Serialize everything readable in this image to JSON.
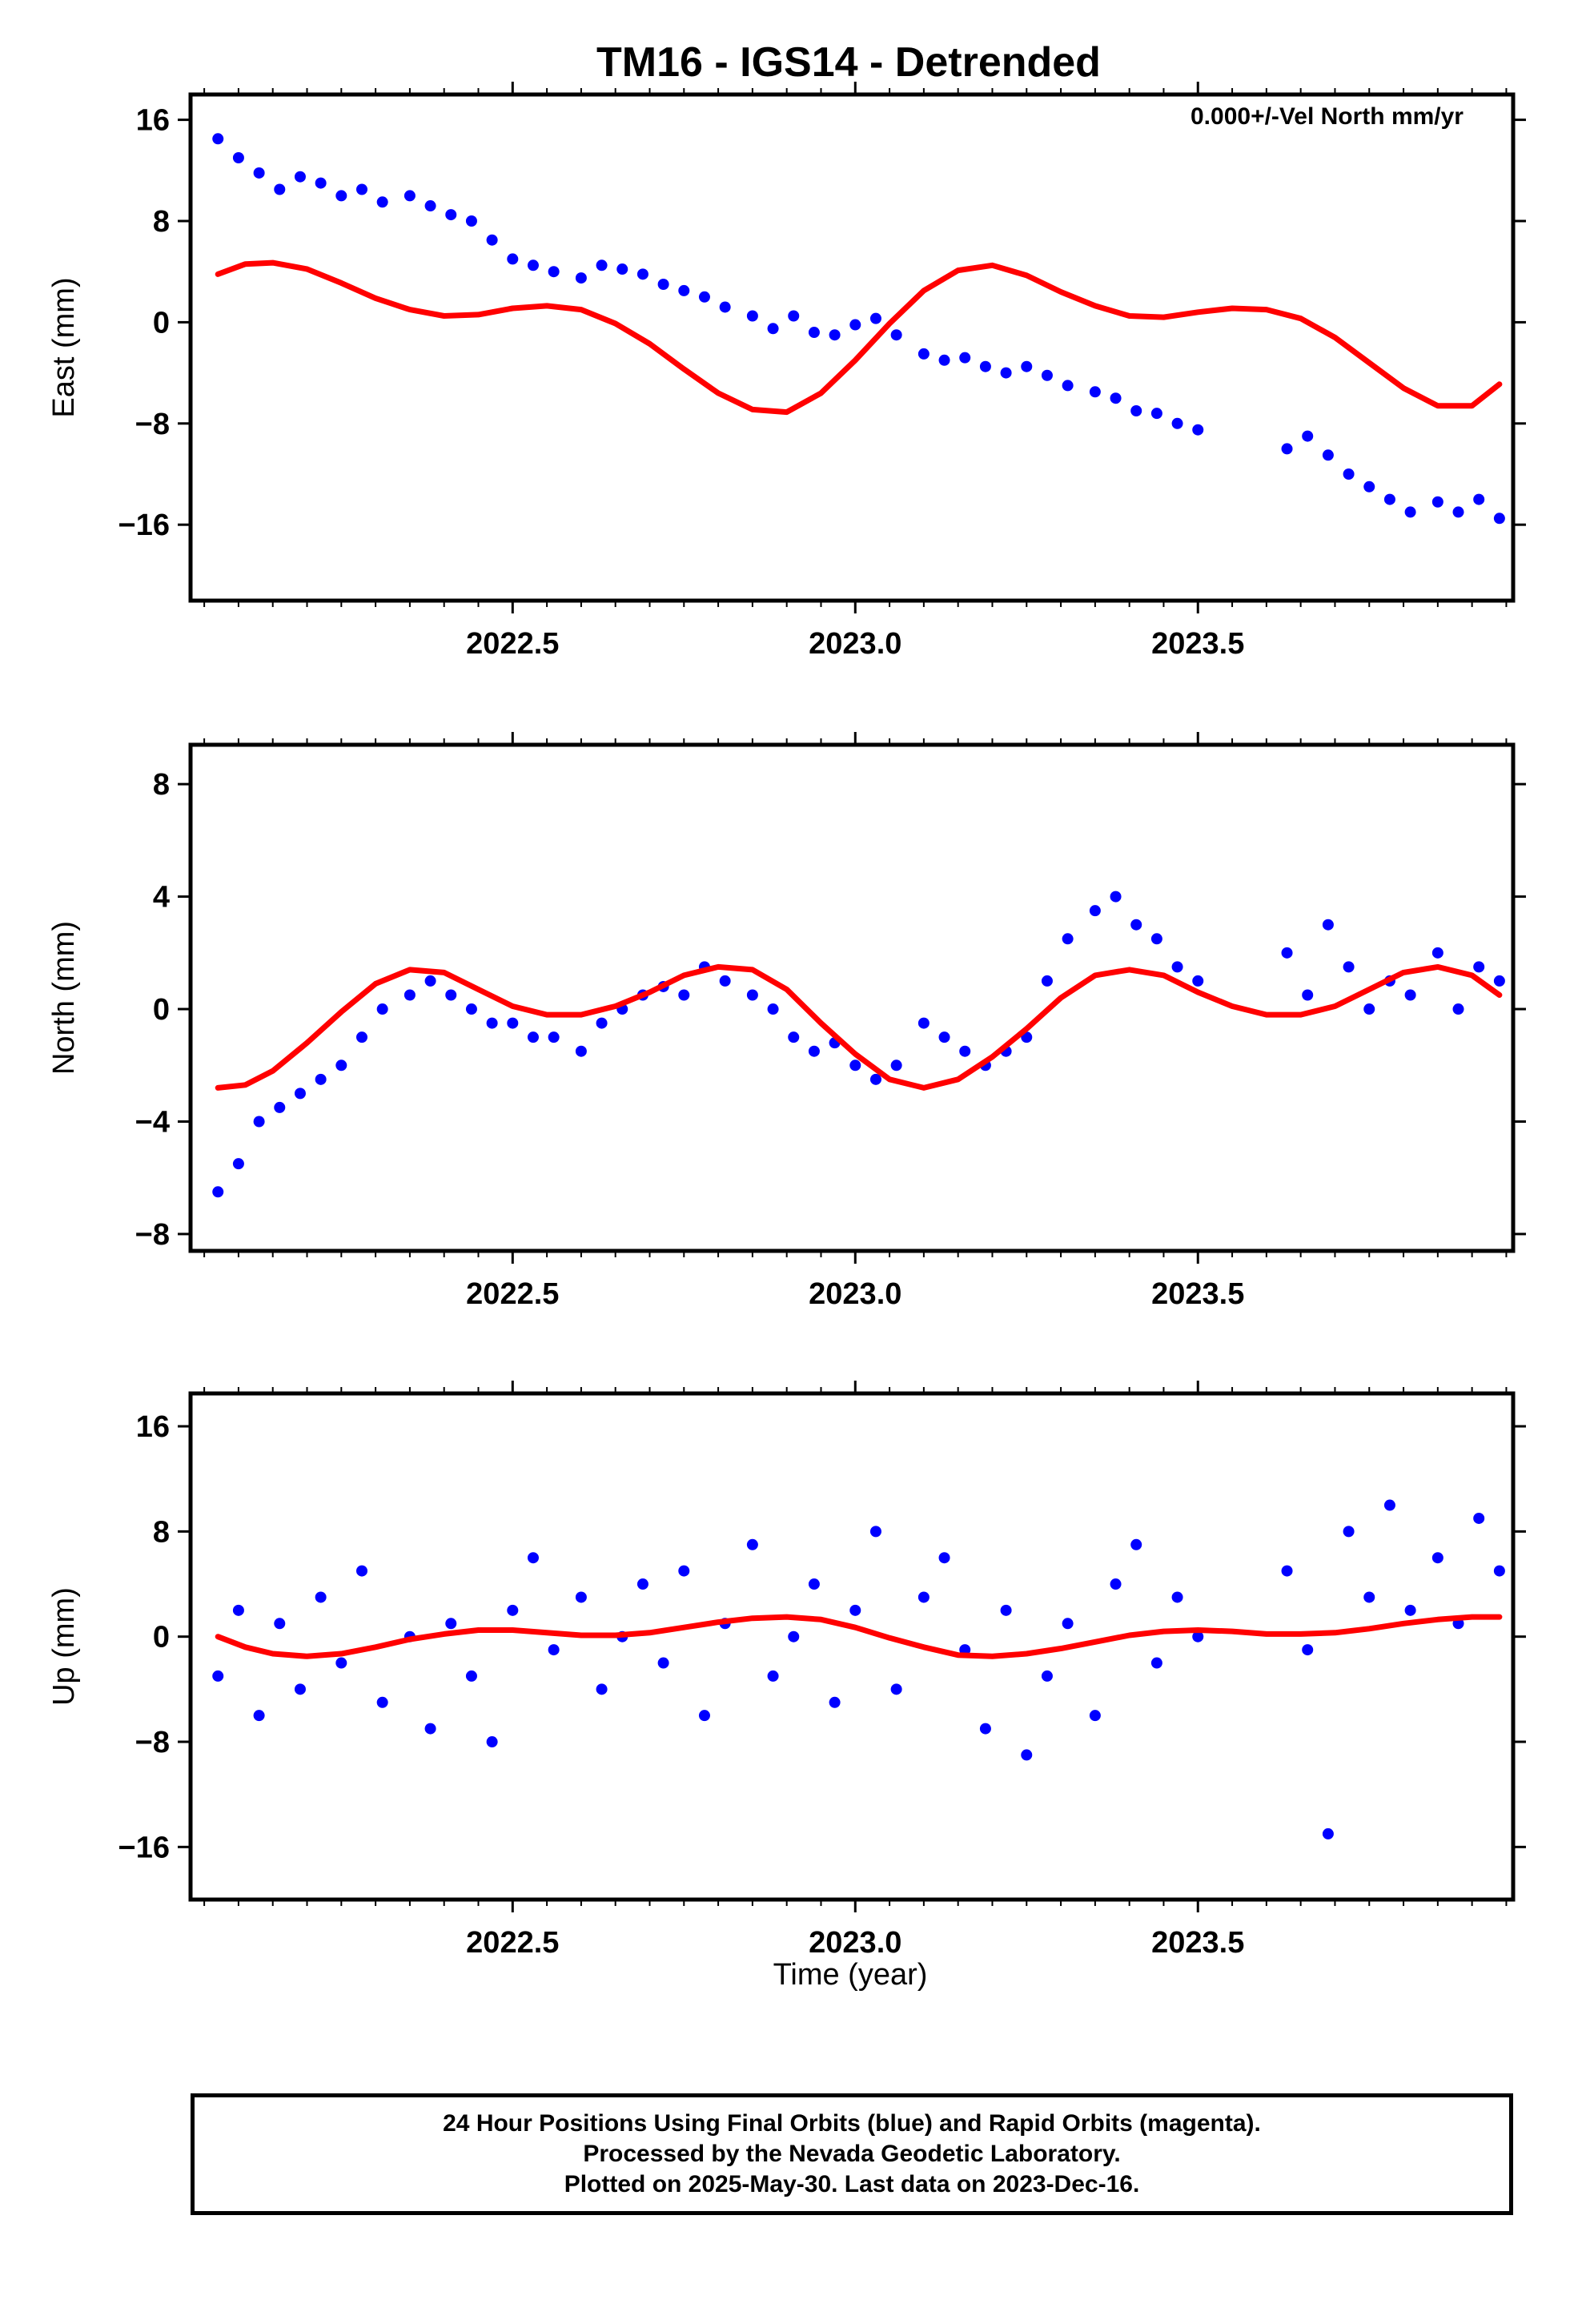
{
  "title": "TM16 - IGS14 - Detrended",
  "annotation": "0.000+/-Vel North mm/yr",
  "xlabel": "Time (year)",
  "caption": [
    "24 Hour Positions Using Final Orbits (blue) and Rapid Orbits (magenta).",
    "Processed by the Nevada Geodetic Laboratory.",
    "Plotted on 2025-May-30. Last data on 2023-Dec-16."
  ],
  "colors": {
    "points": "#0000ff",
    "model": "#ff0000",
    "frame": "#000000"
  },
  "chart_data": [
    {
      "type": "scatter",
      "ylabel": "East (mm)",
      "xlim": [
        2022.03,
        2023.96
      ],
      "ylim": [
        -22,
        18
      ],
      "xticks": [
        2022.5,
        2023.0,
        2023.5
      ],
      "xtick_labels": [
        "2022.5",
        "2023.0",
        "2023.5"
      ],
      "yticks": [
        -16,
        -8,
        0,
        8,
        16
      ],
      "ytick_labels": [
        "−16",
        "−8",
        "0",
        "8",
        "16"
      ],
      "points_x": [
        2022.07,
        2022.1,
        2022.13,
        2022.16,
        2022.19,
        2022.22,
        2022.25,
        2022.28,
        2022.31,
        2022.35,
        2022.38,
        2022.41,
        2022.44,
        2022.47,
        2022.5,
        2022.53,
        2022.56,
        2022.6,
        2022.63,
        2022.66,
        2022.69,
        2022.72,
        2022.75,
        2022.78,
        2022.81,
        2022.85,
        2022.88,
        2022.91,
        2022.94,
        2022.97,
        2023.0,
        2023.03,
        2023.06,
        2023.1,
        2023.13,
        2023.16,
        2023.19,
        2023.22,
        2023.25,
        2023.28,
        2023.31,
        2023.35,
        2023.38,
        2023.41,
        2023.44,
        2023.47,
        2023.5,
        2023.63,
        2023.66,
        2023.69,
        2023.72,
        2023.75,
        2023.78,
        2023.81,
        2023.85,
        2023.88,
        2023.91,
        2023.94
      ],
      "points_y": [
        14.5,
        13,
        11.8,
        10.5,
        11.5,
        11,
        10,
        10.5,
        9.5,
        10,
        9.2,
        8.5,
        8,
        6.5,
        5,
        4.5,
        4,
        3.5,
        4.5,
        4.2,
        3.8,
        3,
        2.5,
        2,
        1.2,
        0.5,
        -0.5,
        0.5,
        -0.8,
        -1,
        -0.2,
        0.3,
        -1,
        -2.5,
        -3,
        -2.8,
        -3.5,
        -4,
        -3.5,
        -4.2,
        -5,
        -5.5,
        -6,
        -7,
        -7.2,
        -8,
        -8.5,
        -10,
        -9,
        -10.5,
        -12,
        -13,
        -14,
        -15,
        -14.2,
        -15,
        -14,
        -15.5
      ],
      "model_x": [
        2022.07,
        2022.11,
        2022.15,
        2022.2,
        2022.25,
        2022.3,
        2022.35,
        2022.4,
        2022.45,
        2022.5,
        2022.55,
        2022.6,
        2022.65,
        2022.7,
        2022.75,
        2022.8,
        2022.85,
        2022.9,
        2022.95,
        2023.0,
        2023.05,
        2023.1,
        2023.15,
        2023.2,
        2023.25,
        2023.3,
        2023.35,
        2023.4,
        2023.45,
        2023.5,
        2023.55,
        2023.6,
        2023.65,
        2023.7,
        2023.75,
        2023.8,
        2023.85,
        2023.9,
        2023.94
      ],
      "model_y": [
        3.8,
        4.6,
        4.7,
        4.2,
        3.1,
        1.9,
        1,
        0.5,
        0.6,
        1.1,
        1.3,
        1,
        -0.1,
        -1.7,
        -3.7,
        -5.6,
        -6.9,
        -7.1,
        -5.6,
        -3,
        -0.1,
        2.5,
        4.1,
        4.5,
        3.7,
        2.4,
        1.3,
        0.5,
        0.4,
        0.8,
        1.1,
        1,
        0.3,
        -1.2,
        -3.2,
        -5.2,
        -6.6,
        -6.6,
        -4.9
      ]
    },
    {
      "type": "scatter",
      "ylabel": "North (mm)",
      "xlim": [
        2022.03,
        2023.96
      ],
      "ylim": [
        -8.6,
        9.4
      ],
      "xticks": [
        2022.5,
        2023.0,
        2023.5
      ],
      "xtick_labels": [
        "2022.5",
        "2023.0",
        "2023.5"
      ],
      "yticks": [
        -8,
        -4,
        0,
        4,
        8
      ],
      "ytick_labels": [
        "−8",
        "−4",
        "0",
        "4",
        "8"
      ],
      "points_x": [
        2022.07,
        2022.1,
        2022.13,
        2022.16,
        2022.19,
        2022.22,
        2022.25,
        2022.28,
        2022.31,
        2022.35,
        2022.38,
        2022.41,
        2022.44,
        2022.47,
        2022.5,
        2022.53,
        2022.56,
        2022.6,
        2022.63,
        2022.66,
        2022.69,
        2022.72,
        2022.75,
        2022.78,
        2022.81,
        2022.85,
        2022.88,
        2022.91,
        2022.94,
        2022.97,
        2023.0,
        2023.03,
        2023.06,
        2023.1,
        2023.13,
        2023.16,
        2023.19,
        2023.22,
        2023.25,
        2023.28,
        2023.31,
        2023.35,
        2023.38,
        2023.41,
        2023.44,
        2023.47,
        2023.5,
        2023.63,
        2023.66,
        2023.69,
        2023.72,
        2023.75,
        2023.78,
        2023.81,
        2023.85,
        2023.88,
        2023.91,
        2023.94
      ],
      "points_y": [
        -6.5,
        -5.5,
        -4,
        -3.5,
        -3,
        -2.5,
        -2,
        -1,
        0,
        0.5,
        1,
        0.5,
        0,
        -0.5,
        -0.5,
        -1,
        -1,
        -1.5,
        -0.5,
        0,
        0.5,
        0.8,
        0.5,
        1.5,
        1,
        0.5,
        0,
        -1,
        -1.5,
        -1.2,
        -2,
        -2.5,
        -2,
        -0.5,
        -1,
        -1.5,
        -2,
        -1.5,
        -1,
        1,
        2.5,
        3.5,
        4,
        3,
        2.5,
        1.5,
        1,
        2,
        0.5,
        3,
        1.5,
        0,
        1,
        0.5,
        2,
        0,
        1.5,
        1
      ],
      "model_x": [
        2022.07,
        2022.11,
        2022.15,
        2022.2,
        2022.25,
        2022.3,
        2022.35,
        2022.4,
        2022.45,
        2022.5,
        2022.55,
        2022.6,
        2022.65,
        2022.7,
        2022.75,
        2022.8,
        2022.85,
        2022.9,
        2022.95,
        2023.0,
        2023.05,
        2023.1,
        2023.15,
        2023.2,
        2023.25,
        2023.3,
        2023.35,
        2023.4,
        2023.45,
        2023.5,
        2023.55,
        2023.6,
        2023.65,
        2023.7,
        2023.75,
        2023.8,
        2023.85,
        2023.9,
        2023.94
      ],
      "model_y": [
        -2.8,
        -2.7,
        -2.2,
        -1.2,
        -0.1,
        0.9,
        1.4,
        1.3,
        0.7,
        0.1,
        -0.2,
        -0.2,
        0.1,
        0.6,
        1.2,
        1.5,
        1.4,
        0.7,
        -0.5,
        -1.6,
        -2.5,
        -2.8,
        -2.5,
        -1.7,
        -0.7,
        0.4,
        1.2,
        1.4,
        1.2,
        0.6,
        0.1,
        -0.2,
        -0.2,
        0.1,
        0.7,
        1.3,
        1.5,
        1.2,
        0.5
      ]
    },
    {
      "type": "scatter",
      "ylabel": "Up (mm)",
      "xlim": [
        2022.03,
        2023.96
      ],
      "ylim": [
        -20,
        18.5
      ],
      "xticks": [
        2022.5,
        2023.0,
        2023.5
      ],
      "xtick_labels": [
        "2022.5",
        "2023.0",
        "2023.5"
      ],
      "yticks": [
        -16,
        -8,
        0,
        8,
        16
      ],
      "ytick_labels": [
        "−16",
        "−8",
        "0",
        "8",
        "16"
      ],
      "points_x": [
        2022.07,
        2022.1,
        2022.13,
        2022.16,
        2022.19,
        2022.22,
        2022.25,
        2022.28,
        2022.31,
        2022.35,
        2022.38,
        2022.41,
        2022.44,
        2022.47,
        2022.5,
        2022.53,
        2022.56,
        2022.6,
        2022.63,
        2022.66,
        2022.69,
        2022.72,
        2022.75,
        2022.78,
        2022.81,
        2022.85,
        2022.88,
        2022.91,
        2022.94,
        2022.97,
        2023.0,
        2023.03,
        2023.06,
        2023.1,
        2023.13,
        2023.16,
        2023.19,
        2023.22,
        2023.25,
        2023.28,
        2023.31,
        2023.35,
        2023.38,
        2023.41,
        2023.44,
        2023.47,
        2023.5,
        2023.63,
        2023.66,
        2023.69,
        2023.72,
        2023.75,
        2023.78,
        2023.81,
        2023.85,
        2023.88,
        2023.91,
        2023.94
      ],
      "points_y": [
        -3,
        2,
        -6,
        1,
        -4,
        3,
        -2,
        5,
        -5,
        0,
        -7,
        1,
        -3,
        -8,
        2,
        6,
        -1,
        3,
        -4,
        0,
        4,
        -2,
        5,
        -6,
        1,
        7,
        -3,
        0,
        4,
        -5,
        2,
        8,
        -4,
        3,
        6,
        -1,
        -7,
        2,
        -9,
        -3,
        1,
        -6,
        4,
        7,
        -2,
        3,
        0,
        5,
        -1,
        -15,
        8,
        3,
        10,
        2,
        6,
        1,
        9,
        5
      ],
      "model_x": [
        2022.07,
        2022.11,
        2022.15,
        2022.2,
        2022.25,
        2022.3,
        2022.35,
        2022.4,
        2022.45,
        2022.5,
        2022.55,
        2022.6,
        2022.65,
        2022.7,
        2022.75,
        2022.8,
        2022.85,
        2022.9,
        2022.95,
        2023.0,
        2023.05,
        2023.1,
        2023.15,
        2023.2,
        2023.25,
        2023.3,
        2023.35,
        2023.4,
        2023.45,
        2023.5,
        2023.55,
        2023.6,
        2023.65,
        2023.7,
        2023.75,
        2023.8,
        2023.85,
        2023.9,
        2023.94
      ],
      "model_y": [
        0,
        -0.8,
        -1.3,
        -1.5,
        -1.3,
        -0.8,
        -0.2,
        0.2,
        0.5,
        0.5,
        0.3,
        0.1,
        0.1,
        0.3,
        0.7,
        1.1,
        1.4,
        1.5,
        1.3,
        0.7,
        -0.1,
        -0.8,
        -1.4,
        -1.5,
        -1.3,
        -0.9,
        -0.4,
        0.1,
        0.4,
        0.5,
        0.4,
        0.2,
        0.2,
        0.3,
        0.6,
        1,
        1.3,
        1.5,
        1.5
      ]
    }
  ]
}
